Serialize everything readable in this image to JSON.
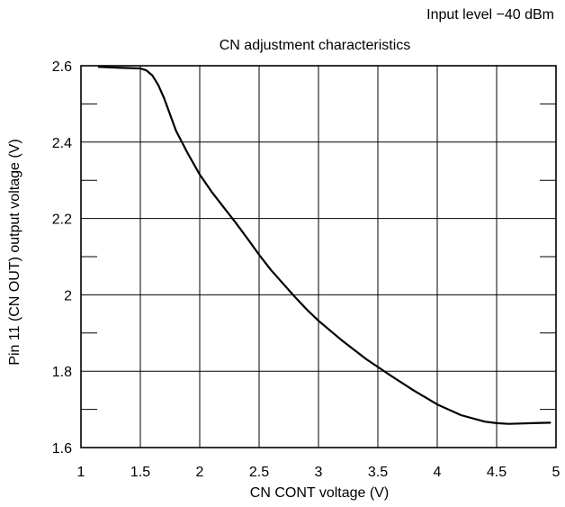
{
  "annotation": "Input level −40 dBm",
  "chart_data": {
    "type": "line",
    "title": "CN adjustment characteristics",
    "xlabel": "CN CONT voltage (V)",
    "ylabel": "Pin 11 (CN OUT) output voltage (V)",
    "xlim": [
      1,
      5
    ],
    "ylim": [
      1.6,
      2.6
    ],
    "x_ticks": [
      "1",
      "1.5",
      "2",
      "2.5",
      "3",
      "3.5",
      "4",
      "4.5",
      "5"
    ],
    "y_ticks": [
      "1.6",
      "1.8",
      "2",
      "2.2",
      "2.4",
      "2.6"
    ],
    "grid": true,
    "series": [
      {
        "x": [
          1.15,
          1.3,
          1.5,
          1.55,
          1.6,
          1.65,
          1.7,
          1.8,
          1.9,
          2.0,
          2.1,
          2.2,
          2.3,
          2.4,
          2.5,
          2.6,
          2.7,
          2.8,
          2.9,
          3.0,
          3.2,
          3.4,
          3.6,
          3.8,
          4.0,
          4.2,
          4.4,
          4.5,
          4.6,
          4.7,
          4.8,
          4.95
        ],
        "y": [
          2.597,
          2.595,
          2.593,
          2.588,
          2.575,
          2.55,
          2.515,
          2.43,
          2.37,
          2.315,
          2.27,
          2.23,
          2.19,
          2.148,
          2.105,
          2.065,
          2.03,
          1.995,
          1.962,
          1.932,
          1.88,
          1.832,
          1.79,
          1.75,
          1.713,
          1.685,
          1.668,
          1.664,
          1.662,
          1.663,
          1.664,
          1.665
        ],
        "color": "#000000"
      }
    ]
  }
}
